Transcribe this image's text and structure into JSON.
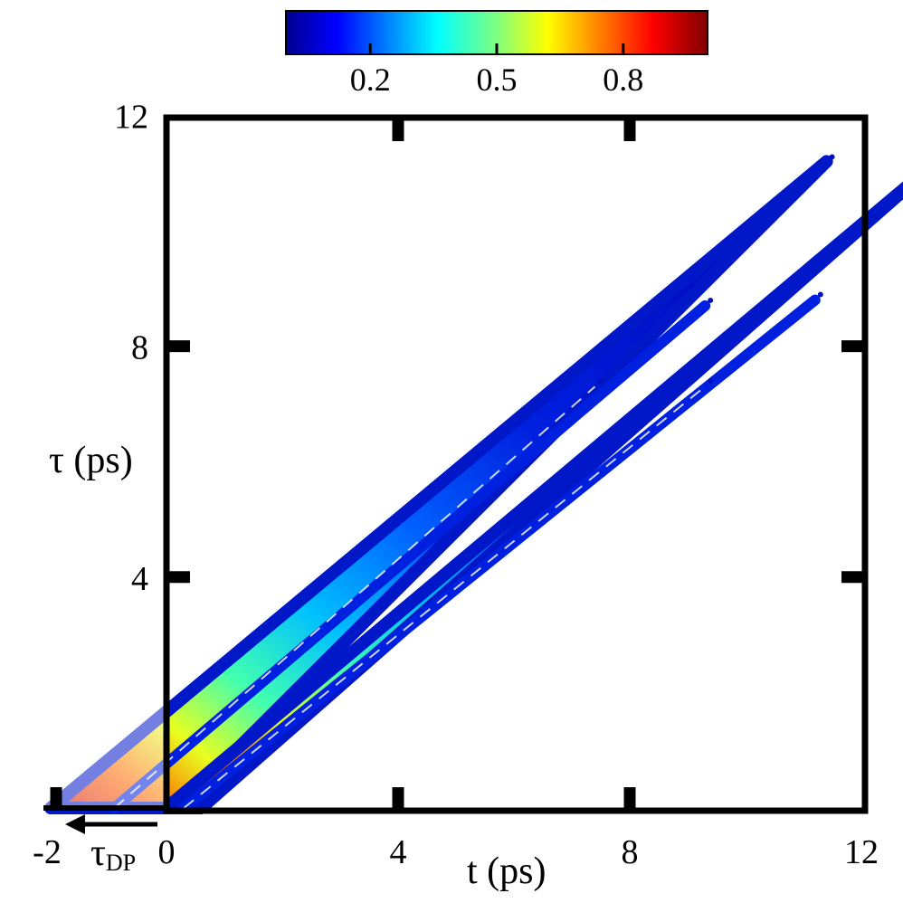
{
  "chart_data": {
    "type": "heatmap",
    "xlabel": "t (ps)",
    "ylabel": "τ (ps)",
    "x_tick_labels": [
      "-2",
      "0",
      "4",
      "8",
      "12"
    ],
    "y_tick_labels": [
      "4",
      "8",
      "12"
    ],
    "xlim": [
      -2,
      12
    ],
    "ylim": [
      0,
      12
    ],
    "colormap": "jet",
    "colorbar": {
      "placement": "top",
      "range": [
        0,
        1
      ],
      "tick_values": [
        0.2,
        0.5,
        0.8
      ],
      "tick_labels": [
        "0.2",
        "0.5",
        "0.8"
      ]
    },
    "annotation": {
      "symbol": "τ",
      "subscript": "DP",
      "arrow_from": 0,
      "arrow_to": -2
    },
    "bands": [
      {
        "name": "",
        "t_at_tau0": [
          -2.0,
          0.2
        ],
        "apex": [
          11.4,
          11.2
        ],
        "inner_apex": [
          9.3,
          8.7
        ],
        "innermost_apex": [
          7.4,
          7.3
        ],
        "peak_value": 0.95
      },
      {
        "name": "",
        "t_at_tau0": [
          0.0,
          0.6
        ],
        "apex": [
          13.3,
          11.2
        ],
        "inner_apex": [
          11.2,
          8.8
        ],
        "innermost_apex": [
          9.3,
          7.3
        ],
        "peak_value": 0.97
      }
    ]
  }
}
